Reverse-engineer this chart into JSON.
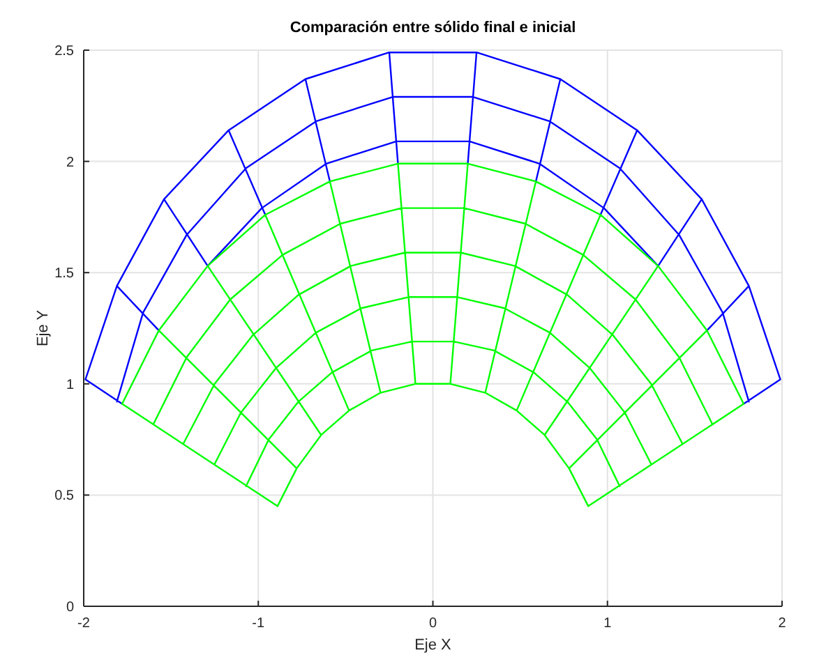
{
  "chart_data": {
    "type": "line",
    "title": "Comparación entre sólido final e inicial",
    "xlabel": "Eje X",
    "ylabel": "Eje Y",
    "xlim": [
      -2,
      2
    ],
    "ylim": [
      0,
      2.5
    ],
    "xticks": [
      -2,
      -1,
      0,
      1,
      2
    ],
    "yticks": [
      0,
      0.5,
      1,
      1.5,
      2,
      2.5
    ],
    "grid": true,
    "series": [
      {
        "color": "#0000ff",
        "x": [
          -1.99,
          -1.81,
          -1.54,
          -1.17,
          -0.73,
          -0.25,
          0.25,
          0.73,
          1.17,
          1.54,
          1.81,
          1.99,
          null,
          -1.81,
          -1.66,
          -1.41,
          -1.07,
          -0.67,
          -0.23,
          0.23,
          0.67,
          1.07,
          1.41,
          1.66,
          1.81,
          null,
          -1.29,
          -0.98,
          -0.61,
          -0.21,
          0.21,
          0.61,
          0.98,
          1.29,
          null,
          -1.78,
          -1.99,
          null,
          -1.57,
          -1.81,
          null,
          -1.29,
          -1.54,
          null,
          -0.96,
          -1.17,
          null,
          -0.59,
          -0.73,
          null,
          -0.2,
          -0.25,
          null,
          0.2,
          0.25,
          null,
          0.59,
          0.73,
          null,
          0.96,
          1.17,
          null,
          1.29,
          1.54,
          null,
          1.57,
          1.81,
          null,
          1.78,
          1.99
        ],
        "values": [
          1.02,
          1.44,
          1.83,
          2.14,
          2.37,
          2.49,
          2.49,
          2.37,
          2.14,
          1.83,
          1.44,
          1.02,
          null,
          0.92,
          1.32,
          1.67,
          1.97,
          2.18,
          2.29,
          2.29,
          2.18,
          1.97,
          1.67,
          1.32,
          0.92,
          null,
          1.53,
          1.79,
          1.99,
          2.09,
          2.09,
          1.99,
          1.79,
          1.53,
          null,
          0.91,
          1.02,
          null,
          1.24,
          1.44,
          null,
          1.53,
          1.83,
          null,
          1.76,
          2.14,
          null,
          1.91,
          2.37,
          null,
          1.99,
          2.49,
          null,
          1.99,
          2.49,
          null,
          1.91,
          2.37,
          null,
          1.76,
          2.14,
          null,
          1.53,
          1.83,
          null,
          1.24,
          1.44,
          null,
          0.91,
          1.02
        ]
      },
      {
        "color": "#00ff00",
        "x": [
          -0.89,
          -0.78,
          -0.64,
          -0.48,
          -0.3,
          -0.1,
          0.1,
          0.3,
          0.48,
          0.64,
          0.78,
          0.89,
          null,
          -1.07,
          -0.94,
          -0.77,
          -0.58,
          -0.35,
          -0.12,
          0.12,
          0.35,
          0.58,
          0.77,
          0.94,
          1.07,
          null,
          -1.25,
          -1.1,
          -0.9,
          -0.67,
          -0.41,
          -0.14,
          0.14,
          0.41,
          0.67,
          0.9,
          1.1,
          1.25,
          null,
          -1.43,
          -1.25,
          -1.03,
          -0.77,
          -0.47,
          -0.16,
          0.16,
          0.47,
          0.77,
          1.03,
          1.25,
          1.43,
          null,
          -1.6,
          -1.41,
          -1.16,
          -0.86,
          -0.53,
          -0.18,
          0.18,
          0.53,
          0.86,
          1.16,
          1.41,
          1.6,
          null,
          -1.78,
          -1.57,
          -1.29,
          -0.96,
          -0.59,
          -0.2,
          0.2,
          0.59,
          0.96,
          1.29,
          1.57,
          1.78,
          null,
          -0.89,
          -1.78,
          null,
          -0.78,
          -1.57,
          null,
          -0.64,
          -1.29,
          null,
          -0.48,
          -0.96,
          null,
          -0.3,
          -0.59,
          null,
          -0.1,
          -0.2,
          null,
          0.1,
          0.2,
          null,
          0.3,
          0.59,
          null,
          0.48,
          0.96,
          null,
          0.64,
          1.29,
          null,
          0.78,
          1.57,
          null,
          0.89,
          1.78
        ],
        "values": [
          0.45,
          0.62,
          0.77,
          0.88,
          0.96,
          1.0,
          1.0,
          0.96,
          0.88,
          0.77,
          0.62,
          0.45,
          null,
          0.54,
          0.75,
          0.92,
          1.05,
          1.15,
          1.19,
          1.19,
          1.15,
          1.05,
          0.92,
          0.75,
          0.54,
          null,
          0.64,
          0.87,
          1.07,
          1.23,
          1.34,
          1.39,
          1.39,
          1.34,
          1.23,
          1.07,
          0.87,
          0.64,
          null,
          0.73,
          1.0,
          1.22,
          1.4,
          1.53,
          1.59,
          1.59,
          1.53,
          1.4,
          1.22,
          1.0,
          0.73,
          null,
          0.82,
          1.12,
          1.38,
          1.58,
          1.72,
          1.79,
          1.79,
          1.72,
          1.58,
          1.38,
          1.12,
          0.82,
          null,
          0.91,
          1.24,
          1.53,
          1.76,
          1.91,
          1.99,
          1.99,
          1.91,
          1.76,
          1.53,
          1.24,
          0.91,
          null,
          0.45,
          0.91,
          null,
          0.62,
          1.24,
          null,
          0.77,
          1.53,
          null,
          0.88,
          1.76,
          null,
          0.96,
          1.91,
          null,
          1.0,
          1.99,
          null,
          1.0,
          1.99,
          null,
          0.96,
          1.91,
          null,
          0.88,
          1.76,
          null,
          0.77,
          1.53,
          null,
          0.62,
          1.24,
          null,
          0.45,
          0.91
        ]
      }
    ]
  }
}
